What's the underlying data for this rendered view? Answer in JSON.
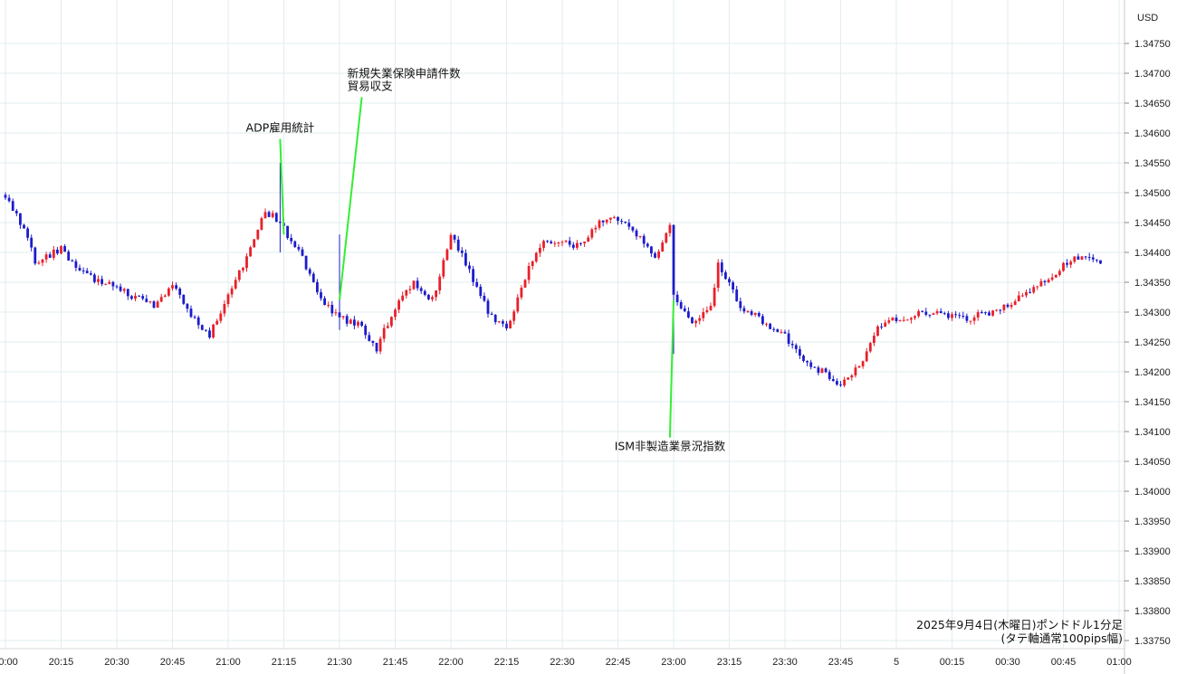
{
  "chart_data": {
    "type": "candlestick",
    "currency_label": "USD",
    "caption_lines": [
      "2025年9月4日(木曜日)ポンドドル1分足",
      "(タテ軸通常100pips幅)"
    ],
    "y_axis": {
      "ylim": [
        1.3373,
        1.348
      ],
      "ticks": [
        "1.34750",
        "1.34700",
        "1.34650",
        "1.34600",
        "1.34550",
        "1.34500",
        "1.34450",
        "1.34400",
        "1.34350",
        "1.34300",
        "1.34250",
        "1.34200",
        "1.34150",
        "1.34100",
        "1.34050",
        "1.34000",
        "1.33950",
        "1.33900",
        "1.33850",
        "1.33800",
        "1.33750"
      ]
    },
    "x_axis": {
      "start_time": "20:00",
      "end_time": "01:00",
      "tick_labels": [
        {
          "t": "20:00",
          "label": "20:00"
        },
        {
          "t": "20:15",
          "label": "20:15"
        },
        {
          "t": "20:30",
          "label": "20:30"
        },
        {
          "t": "20:45",
          "label": "20:45"
        },
        {
          "t": "21:00",
          "label": "21:00"
        },
        {
          "t": "21:15",
          "label": "21:15"
        },
        {
          "t": "21:30",
          "label": "21:30"
        },
        {
          "t": "21:45",
          "label": "21:45"
        },
        {
          "t": "22:00",
          "label": "22:00"
        },
        {
          "t": "22:15",
          "label": "22:15"
        },
        {
          "t": "22:30",
          "label": "22:30"
        },
        {
          "t": "22:45",
          "label": "22:45"
        },
        {
          "t": "23:00",
          "label": "23:00"
        },
        {
          "t": "23:15",
          "label": "23:15"
        },
        {
          "t": "23:30",
          "label": "23:30"
        },
        {
          "t": "23:45",
          "label": "23:45"
        },
        {
          "t": "24:00",
          "label": "5"
        },
        {
          "t": "24:15",
          "label": "00:15"
        },
        {
          "t": "24:30",
          "label": "00:30"
        },
        {
          "t": "24:45",
          "label": "00:45"
        },
        {
          "t": "25:00",
          "label": "01:00"
        }
      ]
    },
    "colors": {
      "up": "#e8202a",
      "down": "#1c1ccc",
      "grid": "#e2ecef",
      "annotation_line": "#33ee33"
    },
    "anchors": [
      [
        "20:00",
        1.34495
      ],
      [
        "20:05",
        1.3444
      ],
      [
        "20:08",
        1.34385
      ],
      [
        "20:15",
        1.34405
      ],
      [
        "20:22",
        1.3436
      ],
      [
        "20:30",
        1.3434
      ],
      [
        "20:40",
        1.3431
      ],
      [
        "20:45",
        1.34345
      ],
      [
        "20:50",
        1.34295
      ],
      [
        "20:55",
        1.3426
      ],
      [
        "21:00",
        1.3433
      ],
      [
        "21:05",
        1.3439
      ],
      [
        "21:10",
        1.3447
      ],
      [
        "21:14",
        1.3445
      ],
      [
        "21:20",
        1.3439
      ],
      [
        "21:25",
        1.34325
      ],
      [
        "21:30",
        1.3429
      ],
      [
        "21:35",
        1.3428
      ],
      [
        "21:40",
        1.3424
      ],
      [
        "21:45",
        1.3431
      ],
      [
        "21:50",
        1.3435
      ],
      [
        "21:55",
        1.3432
      ],
      [
        "22:00",
        1.3443
      ],
      [
        "22:05",
        1.3437
      ],
      [
        "22:10",
        1.343
      ],
      [
        "22:15",
        1.3427
      ],
      [
        "22:20",
        1.3436
      ],
      [
        "22:25",
        1.3442
      ],
      [
        "22:35",
        1.3441
      ],
      [
        "22:40",
        1.3445
      ],
      [
        "22:45",
        1.34455
      ],
      [
        "22:50",
        1.3443
      ],
      [
        "22:55",
        1.3439
      ],
      [
        "22:59",
        1.3444
      ],
      [
        "23:00",
        1.3433
      ],
      [
        "23:05",
        1.34285
      ],
      [
        "23:10",
        1.3431
      ],
      [
        "23:12",
        1.3438
      ],
      [
        "23:18",
        1.3431
      ],
      [
        "23:25",
        1.3428
      ],
      [
        "23:30",
        1.3426
      ],
      [
        "23:35",
        1.3422
      ],
      [
        "23:40",
        1.342
      ],
      [
        "23:45",
        1.3418
      ],
      [
        "23:50",
        1.3421
      ],
      [
        "23:55",
        1.3427
      ],
      [
        "24:00",
        1.3429
      ],
      [
        "24:10",
        1.343
      ],
      [
        "24:20",
        1.3429
      ],
      [
        "24:30",
        1.3431
      ],
      [
        "24:35",
        1.3433
      ],
      [
        "24:40",
        1.3435
      ],
      [
        "24:45",
        1.3438
      ],
      [
        "24:48",
        1.3439
      ],
      [
        "24:55",
        1.34385
      ]
    ],
    "annotations": [
      {
        "lines": [
          "ADP雇用統計"
        ],
        "time": "21:15",
        "price": 1.3443,
        "label_price": 1.3459,
        "label_time": "21:14"
      },
      {
        "lines": [
          "新規失業保険申請件数",
          "貿易収支"
        ],
        "time": "21:30",
        "price": 1.3432,
        "label_price": 1.3466,
        "label_time": "21:36"
      },
      {
        "lines": [
          "ISM非製造業景況指数"
        ],
        "time": "23:00",
        "price": 1.3432,
        "label_price": 1.3409,
        "label_time": "22:59"
      }
    ]
  }
}
